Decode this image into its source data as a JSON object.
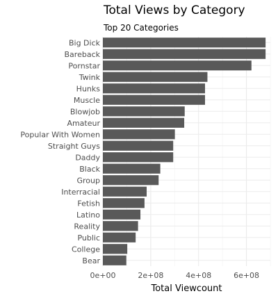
{
  "chart_data": {
    "type": "bar",
    "orientation": "horizontal",
    "title": "Total Views by Category",
    "subtitle": "Top 20 Categories",
    "xlabel": "Total Viewcount",
    "ylabel": "",
    "xlim": [
      0,
      700000000
    ],
    "xticks": [
      0,
      200000000,
      400000000,
      600000000
    ],
    "xtick_labels": [
      "0e+00",
      "2e+08",
      "4e+08",
      "6e+08"
    ],
    "grid": true,
    "bar_color": "#595959",
    "grid_color": "#ebebeb",
    "categories": [
      "Big Dick",
      "Bareback",
      "Pornstar",
      "Twink",
      "Hunks",
      "Muscle",
      "Blowjob",
      "Amateur",
      "Popular With Women",
      "Straight Guys",
      "Daddy",
      "Black",
      "Group",
      "Interracial",
      "Fetish",
      "Latino",
      "Reality",
      "Public",
      "College",
      "Bear"
    ],
    "values": [
      680000000,
      680000000,
      621000000,
      437000000,
      427000000,
      427000000,
      342000000,
      340000000,
      301000000,
      294000000,
      294000000,
      240000000,
      233000000,
      183000000,
      174000000,
      157000000,
      147000000,
      137000000,
      102000000,
      98000000
    ]
  }
}
